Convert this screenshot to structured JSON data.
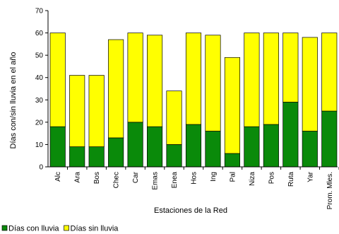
{
  "chart_data": {
    "type": "bar",
    "stacked": true,
    "categories": [
      "Alc",
      "Ara",
      "Bos",
      "Chec",
      "Car",
      "Emas",
      "Enea",
      "Hos",
      "Ing",
      "Pal",
      "Niza",
      "Pos",
      "Ruta",
      "Yar",
      "Prom. Mles."
    ],
    "series": [
      {
        "name": "Días con lluvia",
        "color": "#0a8a0a",
        "values": [
          18,
          9,
          9,
          13,
          20,
          18,
          10,
          19,
          16,
          6,
          18,
          19,
          29,
          16,
          25
        ]
      },
      {
        "name": "Días sin lluvia",
        "color": "#ffff00",
        "values": [
          42,
          32,
          32,
          44,
          40,
          41,
          24,
          41,
          43,
          43,
          42,
          41,
          31,
          42,
          35
        ]
      }
    ],
    "xlabel": "Estaciones de la Red",
    "ylabel": "Días con/sin lluvia en el año",
    "ylim": [
      0,
      70
    ],
    "yticks": [
      0,
      10,
      20,
      30,
      40,
      50,
      60,
      70
    ],
    "grid": false,
    "legend_position": "bottom-left"
  }
}
